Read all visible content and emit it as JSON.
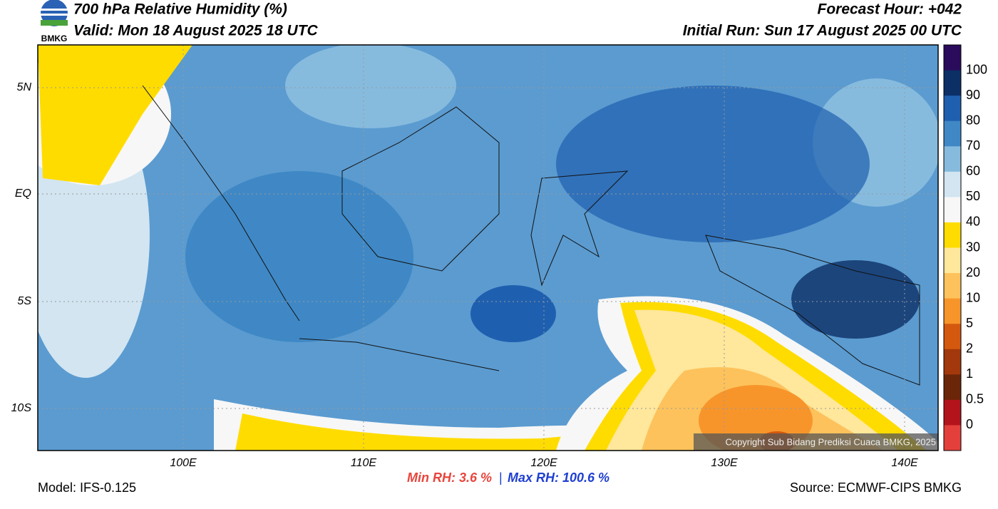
{
  "header": {
    "logo_text": "BMKG",
    "title": "700 hPa Relative Humidity (%)",
    "valid": "Valid: Mon 18 August 2025 18 UTC",
    "forecast_hour": "Forecast Hour: +042",
    "initial_run": "Initial Run: Sun 17 August 2025 00 UTC"
  },
  "map": {
    "lat_labels": [
      "5N",
      "EQ",
      "5S",
      "10S"
    ],
    "lon_labels": [
      "100E",
      "110E",
      "120E",
      "130E",
      "140E"
    ],
    "copyright": "Copyright Sub Bidang Prediksi Cuaca BMKG, 2025"
  },
  "colorbar": {
    "levels": [
      100,
      90,
      80,
      70,
      60,
      50,
      40,
      30,
      20,
      10,
      5,
      2,
      1,
      0.5,
      0
    ],
    "colors": [
      "#2b0b5c",
      "#0c2f66",
      "#1f5faf",
      "#3f88c5",
      "#86bbde",
      "#d2e5f1",
      "#f7f7f7",
      "#ffdc00",
      "#ffe79b",
      "#fdc25c",
      "#f7952b",
      "#d4590f",
      "#a2380b",
      "#6b2609",
      "#b3131b",
      "#e3403b"
    ]
  },
  "footer": {
    "model": "Model: IFS-0.125",
    "min_rh": "Min RH:   3.6 %",
    "separator": "|",
    "max_rh": "Max RH: 100.6 %",
    "source": "Source: ECMWF-CIPS BMKG"
  }
}
